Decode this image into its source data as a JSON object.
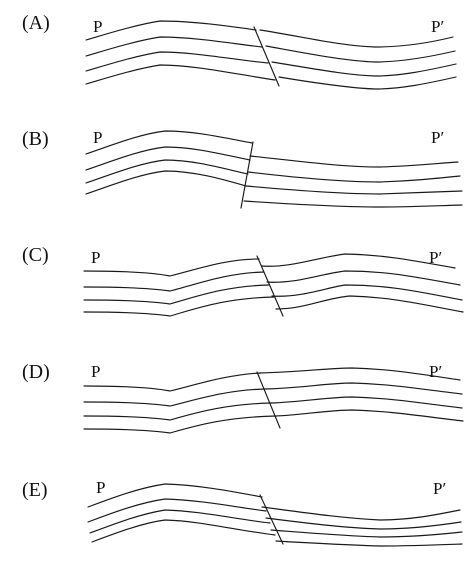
{
  "panels": [
    {
      "option": "(A)",
      "left_label": "P",
      "right_label": "P′"
    },
    {
      "option": "(B)",
      "left_label": "P",
      "right_label": "P′"
    },
    {
      "option": "(C)",
      "left_label": "P",
      "right_label": "P′"
    },
    {
      "option": "(D)",
      "left_label": "P",
      "right_label": "P′"
    },
    {
      "option": "(E)",
      "left_label": "P",
      "right_label": "P′"
    }
  ]
}
